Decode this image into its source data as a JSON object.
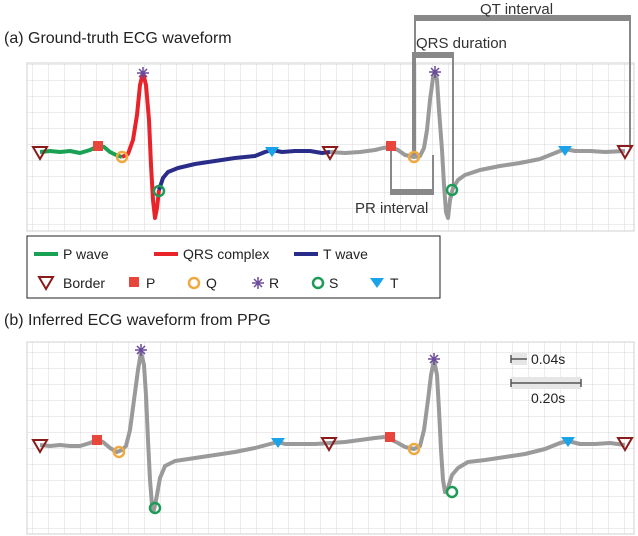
{
  "panels": {
    "a_title": "(a) Ground-truth ECG waveform",
    "b_title": "(b) Inferred ECG waveform from PPG"
  },
  "annotations": {
    "qt_interval": "QT interval",
    "qrs_duration": "QRS duration",
    "pr_interval": "PR interval"
  },
  "legend": {
    "p_wave": "P wave",
    "qrs_complex": "QRS complex",
    "t_wave": "T wave",
    "border": "Border",
    "p": "P",
    "q": "Q",
    "r": "R",
    "s": "S",
    "t": "T"
  },
  "scale": {
    "small": "0.04s",
    "large": "0.20s"
  },
  "colors": {
    "p_wave": "#1aa153",
    "qrs_complex": "#e8232a",
    "t_wave": "#2a2c8a",
    "trace": "#9a9a9a",
    "border_marker": "#8b1a1a",
    "p_marker": "#e8453c",
    "q_marker": "#f0a841",
    "r_marker": "#6a4a9a",
    "s_marker": "#1c9c56",
    "t_marker": "#1aa3e8",
    "bracket": "#888888",
    "grid": "#d8d8d8"
  }
}
